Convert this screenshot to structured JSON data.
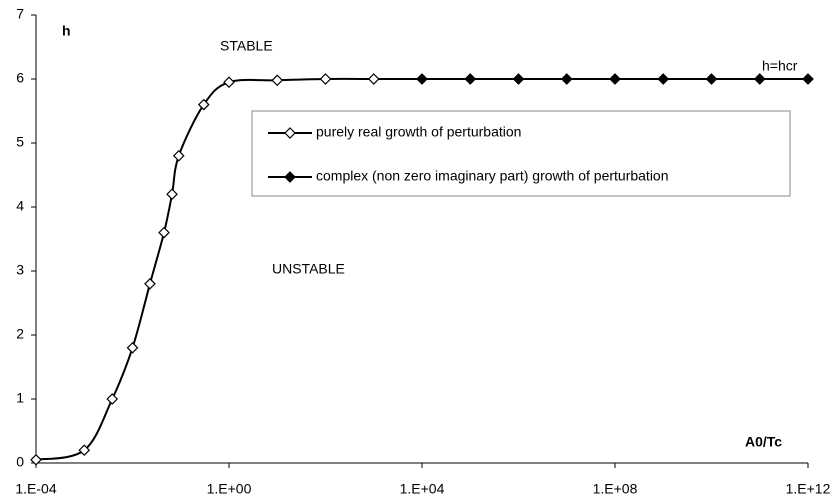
{
  "chart_data": {
    "type": "line",
    "log_x": true,
    "ylabel": "h",
    "xlabel": "A0/Tc",
    "annotations": [
      "STABLE",
      "UNSTABLE",
      "h=hcr"
    ],
    "x": [
      0.0001,
      0.001,
      0.0038,
      0.01,
      0.023,
      0.045,
      0.066,
      0.091,
      0.3,
      1,
      10,
      100,
      1000,
      10000,
      100000,
      1000000,
      10000000,
      100000000,
      1000000000,
      10000000000,
      100000000000,
      1000000000000
    ],
    "series": [
      {
        "name": "purely real growth of perturbation",
        "color": "#000000",
        "marker": "open-diamond",
        "values": [
          0.05,
          0.2,
          1.0,
          1.8,
          2.8,
          3.6,
          4.2,
          4.8,
          5.6,
          5.95,
          5.98,
          6.0,
          6.0,
          null,
          null,
          null,
          null,
          null,
          null,
          null,
          null,
          null
        ]
      },
      {
        "name": "complex (non zero imaginary part) growth of perturbation",
        "color": "#000000",
        "marker": "filled-diamond",
        "values": [
          null,
          null,
          null,
          null,
          null,
          null,
          null,
          null,
          null,
          null,
          null,
          null,
          null,
          6,
          6,
          6,
          6,
          6,
          6,
          6,
          6,
          6
        ]
      }
    ],
    "xlim": [
      0.0001,
      1000000000000
    ],
    "xticks": [
      {
        "value": 0.0001,
        "label": "1.E-04"
      },
      {
        "value": 1,
        "label": "1.E+00"
      },
      {
        "value": 10000,
        "label": "1.E+04"
      },
      {
        "value": 100000000,
        "label": "1.E+08"
      },
      {
        "value": 1000000000000,
        "label": "1.E+12"
      }
    ],
    "ylim": [
      0,
      7
    ],
    "yticks": [
      0,
      1,
      2,
      3,
      4,
      5,
      6,
      7
    ],
    "grid": false
  }
}
